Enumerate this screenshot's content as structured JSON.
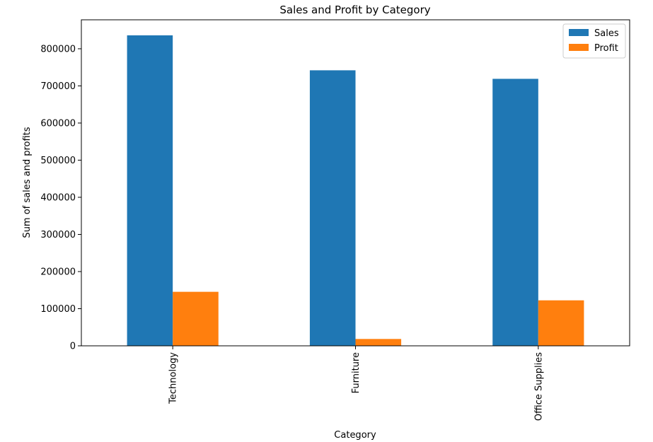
{
  "chart_data": {
    "type": "bar",
    "title": "Sales and Profit by Category",
    "xlabel": "Category",
    "ylabel": "Sum of sales and profits",
    "categories": [
      "Technology",
      "Furniture",
      "Office Supplies"
    ],
    "series": [
      {
        "name": "Sales",
        "values": [
          836154,
          741999,
          719047
        ],
        "color": "#1f77b4"
      },
      {
        "name": "Profit",
        "values": [
          145455,
          18451,
          122491
        ],
        "color": "#ff7f0e"
      }
    ],
    "ylim": [
      0,
      878000
    ],
    "yticks": [
      0,
      100000,
      200000,
      300000,
      400000,
      500000,
      600000,
      700000,
      800000
    ],
    "legend_position": "top-right",
    "grid": false
  }
}
